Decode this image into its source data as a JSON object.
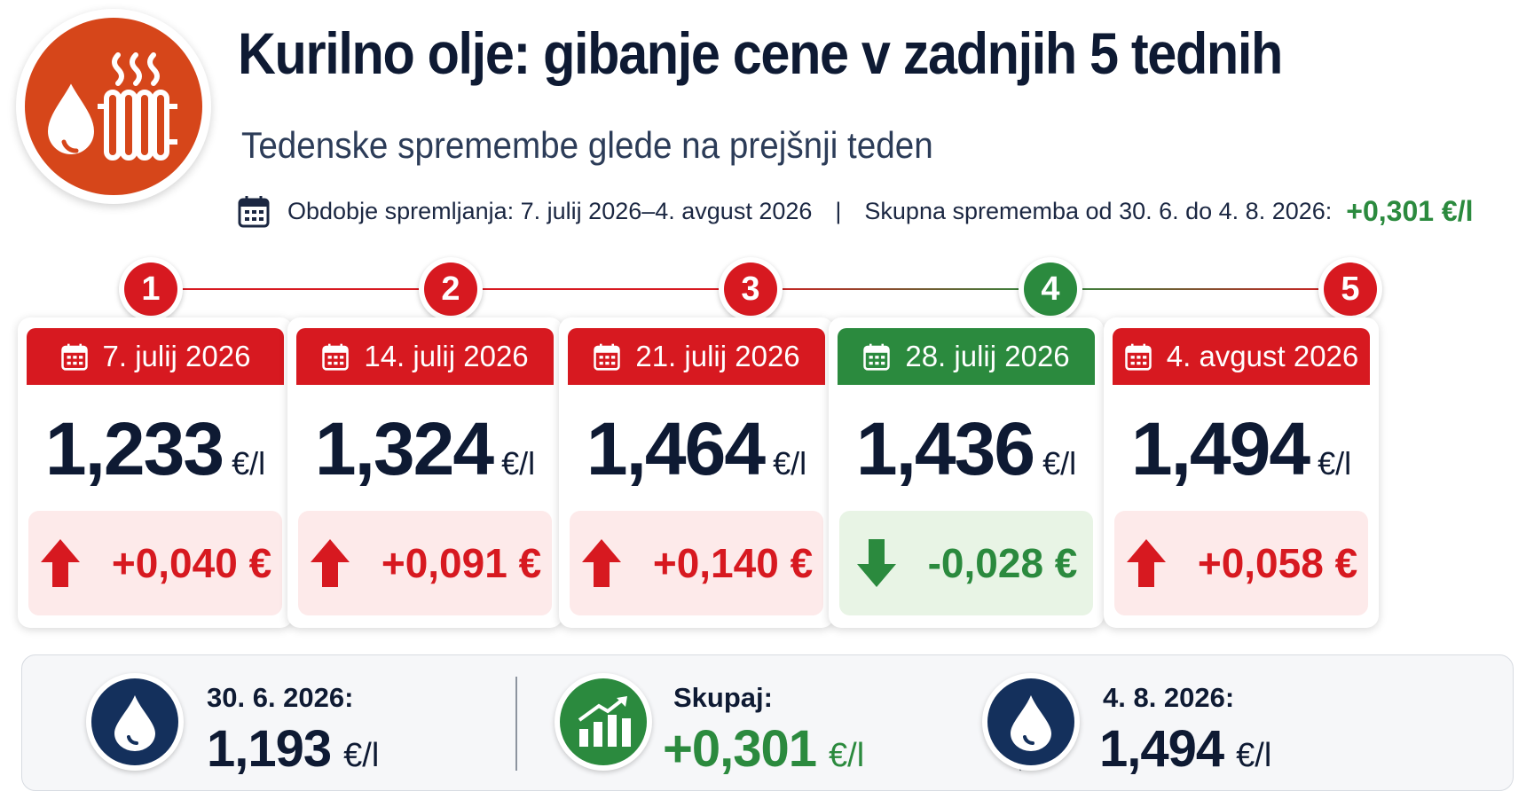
{
  "header": {
    "title": "Kurilno olje: gibanje cene v zadnjih 5 tednih",
    "subtitle": "Tedenske spremembe glede na prejšnji teden",
    "period": "Obdobje spremljanja: 7. julij 2026–4. avgust 2026",
    "separator": "|",
    "total_label": "Skupna sprememba od 30. 6. do 4. 8. 2026:",
    "total_value": "+0,301 €/l",
    "logo_icon": "heating-oil-radiator-icon"
  },
  "colors": {
    "up": "#d71920",
    "down": "#2b8a3e",
    "up_bg": "#fdeaea",
    "down_bg": "#e8f4e5",
    "navy": "#14305c",
    "logo": "#d6461a"
  },
  "weeks": [
    {
      "step": "1",
      "date": "7. julij 2026",
      "price": "1,233",
      "unit": "€/l",
      "change": "+0,040 €",
      "direction": "up"
    },
    {
      "step": "2",
      "date": "14. julij 2026",
      "price": "1,324",
      "unit": "€/l",
      "change": "+0,091 €",
      "direction": "up"
    },
    {
      "step": "3",
      "date": "21. julij 2026",
      "price": "1,464",
      "unit": "€/l",
      "change": "+0,140 €",
      "direction": "up"
    },
    {
      "step": "4",
      "date": "28. julij 2026",
      "price": "1,436",
      "unit": "€/l",
      "change": "-0,028 €",
      "direction": "down"
    },
    {
      "step": "5",
      "date": "4. avgust 2026",
      "price": "1,494",
      "unit": "€/l",
      "change": "+0,058 €",
      "direction": "up"
    }
  ],
  "summary": {
    "start": {
      "label": "30. 6. 2026:",
      "value": "1,193",
      "unit": "€/l",
      "icon": "oil-drop-icon"
    },
    "total": {
      "label": "Skupaj:",
      "value": "+0,301",
      "unit": "€/l",
      "icon": "growth-chart-icon"
    },
    "end": {
      "label": "4. 8. 2026:",
      "value": "1,494",
      "unit": "€/l",
      "icon": "oil-drop-icon"
    }
  }
}
